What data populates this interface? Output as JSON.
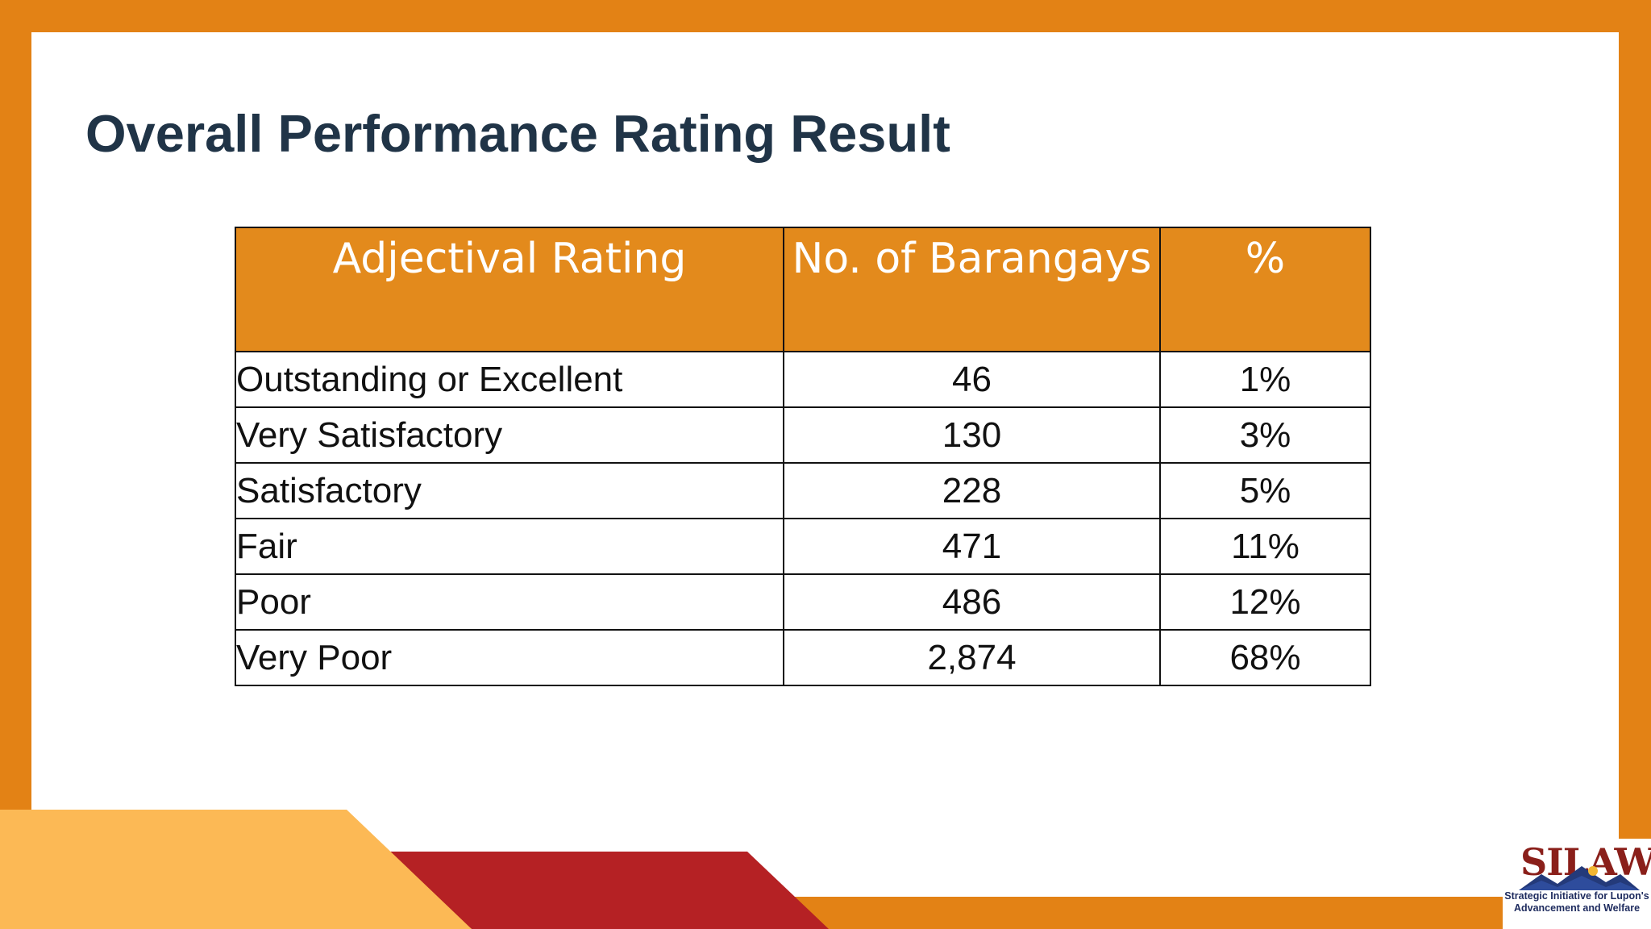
{
  "slide": {
    "title": "Overall Performance Rating Result"
  },
  "table": {
    "headers": [
      "Adjectival Rating",
      "No. of Barangays",
      "%"
    ],
    "rows": [
      {
        "rating": "Outstanding or Excellent",
        "count": "46",
        "percent": "1%"
      },
      {
        "rating": "Very Satisfactory",
        "count": "130",
        "percent": "3%"
      },
      {
        "rating": "Satisfactory",
        "count": "228",
        "percent": "5%"
      },
      {
        "rating": "Fair",
        "count": "471",
        "percent": "11%"
      },
      {
        "rating": "Poor",
        "count": "486",
        "percent": "12%"
      },
      {
        "rating": "Very Poor",
        "count": "2,874",
        "percent": "68%"
      }
    ]
  },
  "logo": {
    "mark": "SILAW",
    "tagline_line1": "Strategic Initiative for Lupon's",
    "tagline_line2": "Advancement and Welfare"
  },
  "colors": {
    "frame_orange": "#E38215",
    "header_orange": "#E38A1C",
    "title_navy": "#203447",
    "light_orange": "#FCB955",
    "deep_red": "#B52124"
  }
}
